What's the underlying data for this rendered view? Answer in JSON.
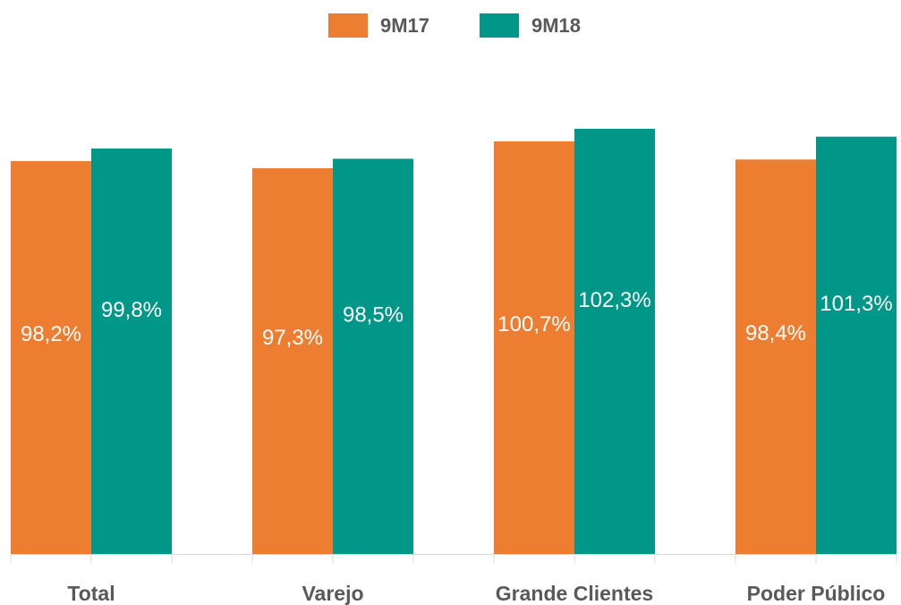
{
  "chart_data": {
    "type": "bar",
    "categories": [
      "Total",
      "Varejo",
      "Grande Clientes",
      "Poder Público"
    ],
    "series": [
      {
        "name": "9M17",
        "color": "#ED7D31",
        "values": [
          98.2,
          97.3,
          100.7,
          98.4
        ],
        "value_labels": [
          "98,2%",
          "97,3%",
          "100,7%",
          "98,4%"
        ]
      },
      {
        "name": "9M18",
        "color": "#009688",
        "values": [
          99.8,
          98.5,
          102.3,
          101.3
        ],
        "value_labels": [
          "99,8%",
          "98,5%",
          "102,3%",
          "101,3%"
        ]
      }
    ],
    "ylim": [
      48.4,
      110
    ]
  }
}
